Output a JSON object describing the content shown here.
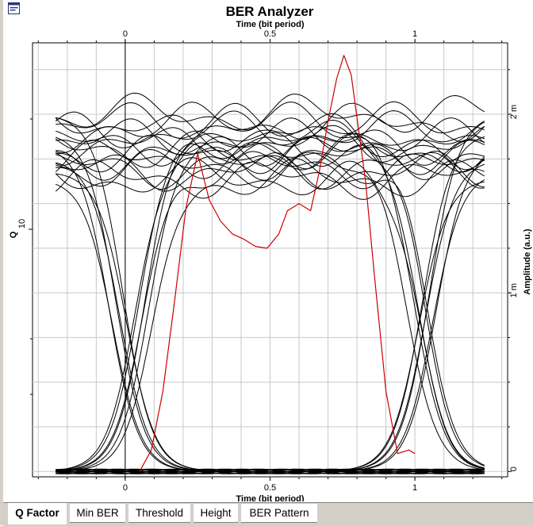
{
  "window": {
    "title": "BER Analyzer"
  },
  "tabs": [
    {
      "label": "Q Factor",
      "active": true
    },
    {
      "label": "Min BER",
      "active": false
    },
    {
      "label": "Threshold",
      "active": false
    },
    {
      "label": "Height",
      "active": false
    },
    {
      "label": "BER Pattern",
      "active": false
    }
  ],
  "chart_data": {
    "type": "line",
    "title": "BER Analyzer",
    "xlabel_top": "Time (bit period)",
    "xlabel_bottom": "Time (bit period)",
    "ylabel_left": "Q",
    "ylabel_right": "Amplitude (a.u.)",
    "xlim": [
      -0.32,
      1.32
    ],
    "x_ticks": [
      0,
      0.5,
      1
    ],
    "x_tick_labels": [
      "0",
      "0.5",
      "1"
    ],
    "left_y_ticks": [
      10
    ],
    "left_y_tick_labels": [
      "10"
    ],
    "right_ylim": [
      -3e-05,
      0.0024
    ],
    "right_y_ticks": [
      0,
      0.001,
      0.002
    ],
    "right_y_tick_labels": [
      "0",
      "1 m",
      "2 m"
    ],
    "grid": true,
    "colors": {
      "eye_traces": "#000000",
      "q_curve": "#cc0000",
      "grid": "#c8c8c8"
    },
    "eye_diagram": {
      "description_free": true,
      "one_level_amplitudes": [
        0.00178,
        0.00186,
        0.0017,
        0.00195,
        0.00183,
        0.00164,
        0.0019,
        0.00175,
        0.002,
        0.00168,
        0.00181
      ],
      "zero_level_amplitude": 0.0,
      "rise_crossings": [
        0.0,
        1.0
      ],
      "fall_crossings": [
        0.0,
        1.0
      ]
    },
    "series": [
      {
        "role": "q_factor",
        "color": "#cc0000",
        "x": [
          0.05,
          0.09,
          0.13,
          0.17,
          0.21,
          0.25,
          0.29,
          0.33,
          0.37,
          0.41,
          0.45,
          0.49,
          0.53,
          0.56,
          0.6,
          0.64,
          0.67,
          0.7,
          0.73,
          0.755,
          0.78,
          0.8,
          0.83,
          0.86,
          0.9,
          0.94,
          0.98,
          1.0
        ],
        "y_amplitude": [
          0.0,
          0.00012,
          0.00045,
          0.00095,
          0.00148,
          0.00178,
          0.00152,
          0.0014,
          0.00133,
          0.0013,
          0.00126,
          0.00125,
          0.00133,
          0.00146,
          0.0015,
          0.00146,
          0.00168,
          0.00196,
          0.0022,
          0.00233,
          0.00222,
          0.00198,
          0.00162,
          0.0011,
          0.00045,
          0.0001,
          0.00012,
          0.0001
        ]
      }
    ]
  }
}
